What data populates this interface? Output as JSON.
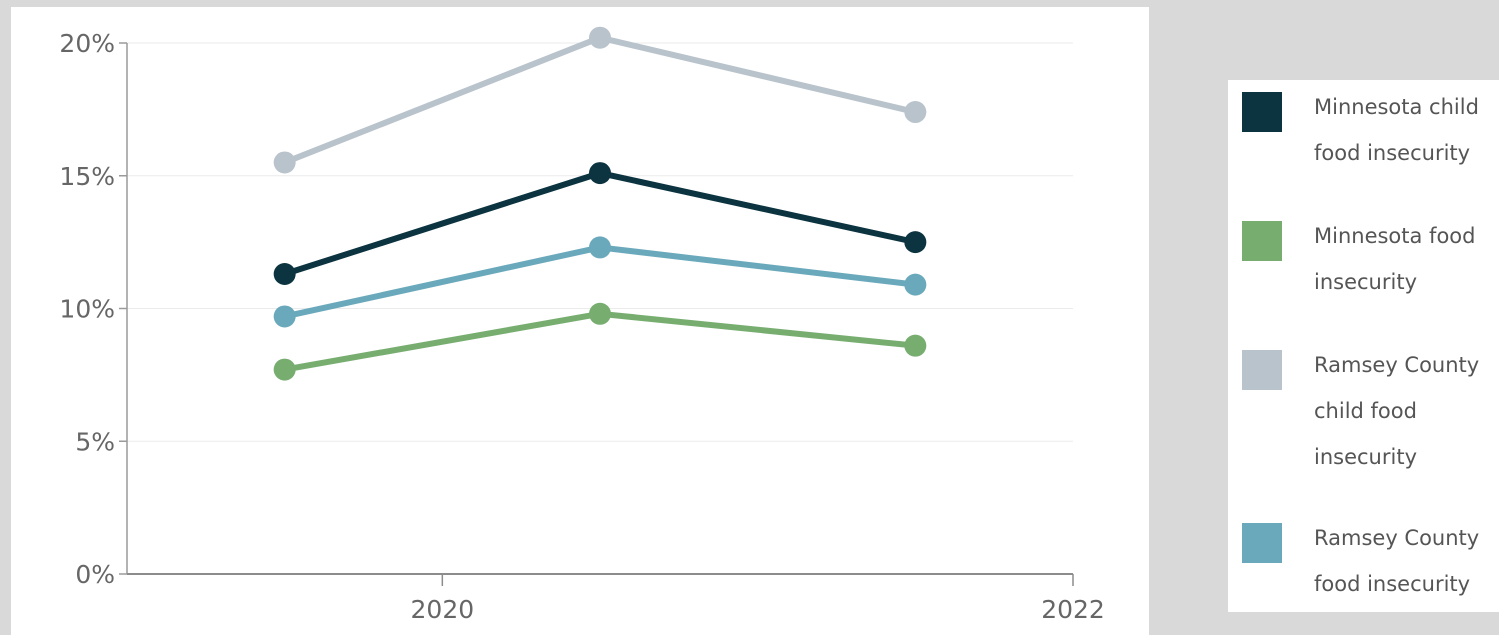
{
  "chart_data": {
    "type": "line",
    "x": [
      2019.5,
      2020.5,
      2021.5
    ],
    "xlim": [
      2019,
      2022
    ],
    "x_ticks": [
      {
        "value": 2020,
        "label": "2020"
      },
      {
        "value": 2022,
        "label": "2022"
      }
    ],
    "ylim": [
      0,
      20
    ],
    "y_ticks": [
      {
        "value": 0,
        "label": "0%"
      },
      {
        "value": 5,
        "label": "5%"
      },
      {
        "value": 10,
        "label": "10%"
      },
      {
        "value": 15,
        "label": "15%"
      },
      {
        "value": 20,
        "label": "20%"
      }
    ],
    "grid": true,
    "legend_position": "right",
    "series": [
      {
        "name": "Minnesota child food insecurity",
        "color": "#0b3340",
        "values": [
          11.3,
          15.1,
          12.5
        ]
      },
      {
        "name": "Minnesota food insecurity",
        "color": "#77ae70",
        "values": [
          7.7,
          9.8,
          8.6
        ]
      },
      {
        "name": "Ramsey County child food insecurity",
        "color": "#b9c3cc",
        "values": [
          15.5,
          20.2,
          17.4
        ]
      },
      {
        "name": "Ramsey County food insecurity",
        "color": "#6aa9bb",
        "values": [
          9.7,
          12.3,
          10.9
        ]
      }
    ],
    "draw_order": [
      2,
      0,
      3,
      1
    ]
  },
  "legend": {
    "items": [
      {
        "lines": [
          "Minnesota child",
          "food insecurity"
        ],
        "color": "#0b3340"
      },
      {
        "lines": [
          "Minnesota food",
          "insecurity"
        ],
        "color": "#77ae70"
      },
      {
        "lines": [
          "Ramsey County",
          "child food",
          "insecurity"
        ],
        "color": "#b9c3cc"
      },
      {
        "lines": [
          "Ramsey County",
          "food insecurity"
        ],
        "color": "#6aa9bb"
      }
    ]
  }
}
